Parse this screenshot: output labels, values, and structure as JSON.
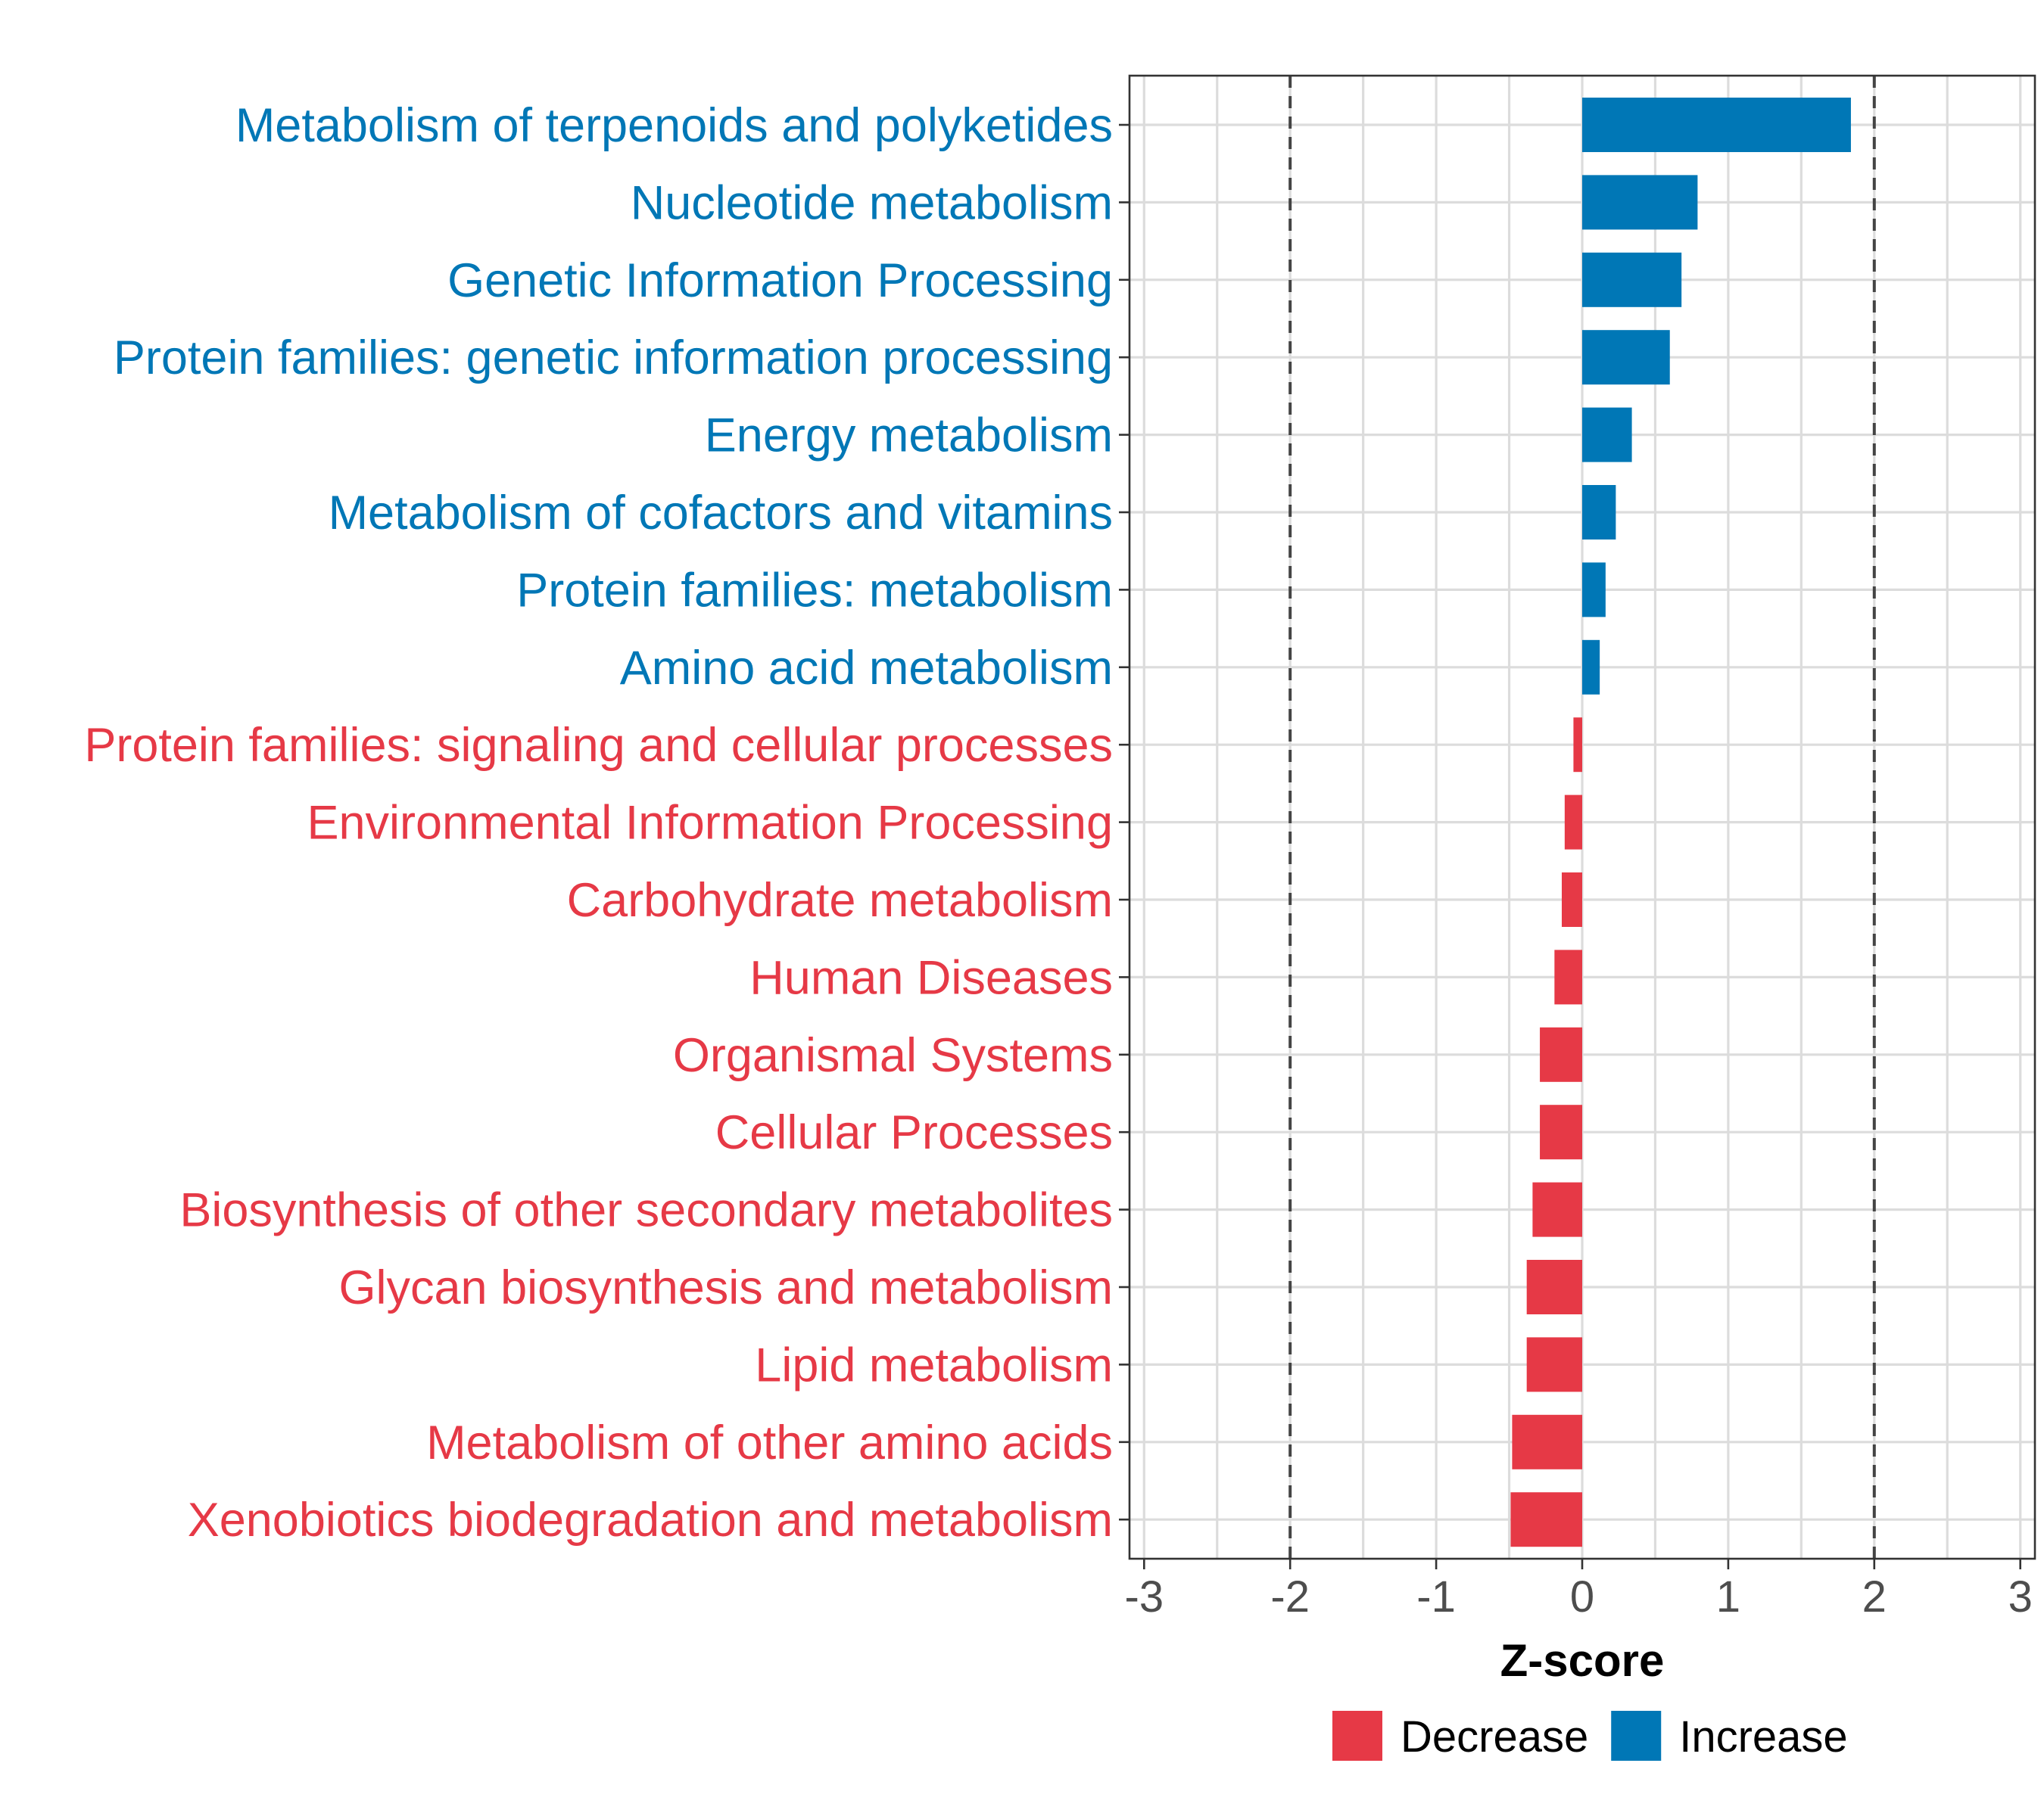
{
  "chart_data": {
    "type": "bar",
    "orientation": "horizontal",
    "xlabel": "Z-score",
    "ylabel": "",
    "xlim": [
      -3.1,
      3.1
    ],
    "x_ticks": [
      -3,
      -2,
      -1,
      0,
      1,
      2,
      3
    ],
    "x_tick_labels": [
      "-3",
      "-2",
      "-1",
      "0",
      "1",
      "2",
      "3"
    ],
    "reference_lines": [
      -2,
      2
    ],
    "grid": true,
    "legend_placement": "bottom",
    "colors": {
      "Decrease": "#e63946",
      "Increase": "#0077b6"
    },
    "legend": [
      {
        "label": "Decrease",
        "color_key": "Decrease"
      },
      {
        "label": "Increase",
        "color_key": "Increase"
      }
    ],
    "bars": [
      {
        "category": "Metabolism of terpenoids and polyketides",
        "value": 1.84,
        "group": "Increase"
      },
      {
        "category": "Nucleotide metabolism",
        "value": 0.79,
        "group": "Increase"
      },
      {
        "category": "Genetic Information Processing",
        "value": 0.68,
        "group": "Increase"
      },
      {
        "category": "Protein families: genetic information processing",
        "value": 0.6,
        "group": "Increase"
      },
      {
        "category": "Energy metabolism",
        "value": 0.34,
        "group": "Increase"
      },
      {
        "category": "Metabolism of cofactors and vitamins",
        "value": 0.23,
        "group": "Increase"
      },
      {
        "category": "Protein families: metabolism",
        "value": 0.16,
        "group": "Increase"
      },
      {
        "category": "Amino acid metabolism",
        "value": 0.12,
        "group": "Increase"
      },
      {
        "category": "Protein families: signaling and cellular processes",
        "value": -0.06,
        "group": "Decrease"
      },
      {
        "category": "Environmental Information Processing",
        "value": -0.12,
        "group": "Decrease"
      },
      {
        "category": "Carbohydrate metabolism",
        "value": -0.14,
        "group": "Decrease"
      },
      {
        "category": "Human Diseases",
        "value": -0.19,
        "group": "Decrease"
      },
      {
        "category": "Organismal Systems",
        "value": -0.29,
        "group": "Decrease"
      },
      {
        "category": "Cellular Processes",
        "value": -0.29,
        "group": "Decrease"
      },
      {
        "category": "Biosynthesis of other secondary metabolites",
        "value": -0.34,
        "group": "Decrease"
      },
      {
        "category": "Glycan biosynthesis and metabolism",
        "value": -0.38,
        "group": "Decrease"
      },
      {
        "category": "Lipid metabolism",
        "value": -0.38,
        "group": "Decrease"
      },
      {
        "category": "Metabolism of other amino acids",
        "value": -0.48,
        "group": "Decrease"
      },
      {
        "category": "Xenobiotics biodegradation and metabolism",
        "value": -0.49,
        "group": "Decrease"
      }
    ]
  }
}
